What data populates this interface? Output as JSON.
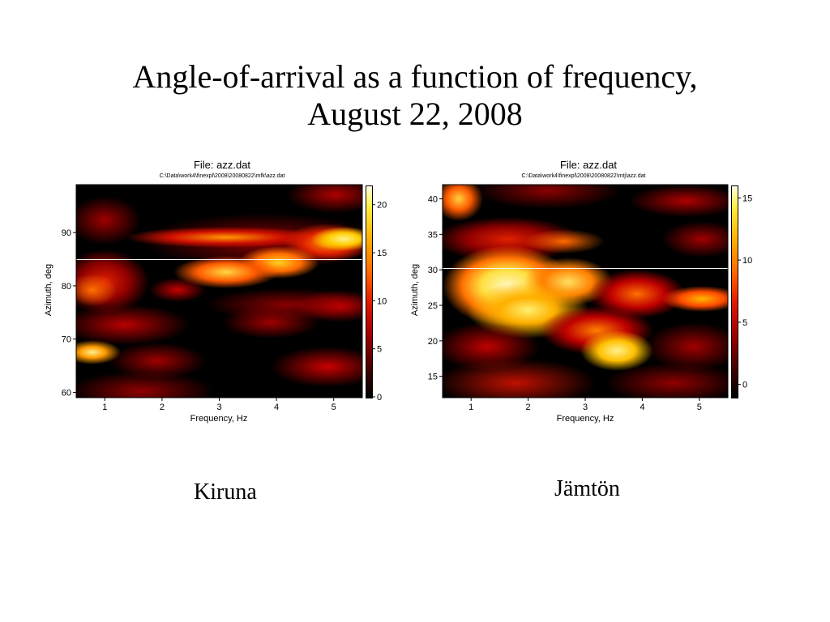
{
  "title_line1": "Angle-of-arrival as a function of frequency,",
  "title_line2": "August 22, 2008",
  "chart_data": [
    {
      "type": "heatmap",
      "name": "Kiruna",
      "title": "File: azz.dat",
      "subtitle": "C:\\Data\\work4\\finexpl\\2008\\20080822\\mfk\\azz.dat",
      "xlabel": "Frequency, Hz",
      "ylabel": "Azimuth, deg",
      "xlim": [
        0.5,
        5.5
      ],
      "ylim": [
        59,
        99
      ],
      "xticks": [
        1,
        2,
        3,
        4,
        5
      ],
      "yticks": [
        60,
        70,
        80,
        90
      ],
      "colorbar_ticks": [
        0,
        5,
        10,
        15,
        20
      ],
      "colorbar_range": [
        0,
        22
      ],
      "colormap": "hot",
      "marker_line_y": 85,
      "caption": "Kiruna"
    },
    {
      "type": "heatmap",
      "name": "Jämtön",
      "title": "File: azz.dat",
      "subtitle": "C:\\Data\\work4\\finexpl\\2008\\20080822\\mtj\\azz.dat",
      "xlabel": "Frequency, Hz",
      "ylabel": "Azimuth, deg",
      "xlim": [
        0.5,
        5.5
      ],
      "ylim": [
        12,
        42
      ],
      "xticks": [
        1,
        2,
        3,
        4,
        5
      ],
      "yticks": [
        15,
        20,
        25,
        30,
        35,
        40
      ],
      "colorbar_ticks": [
        0,
        5,
        10,
        15
      ],
      "colorbar_range": [
        -1,
        16
      ],
      "colormap": "hot",
      "marker_line_y": 30.3,
      "caption": "Jämtön"
    }
  ],
  "colors": {
    "low": "#000000",
    "mid": "#e21a00",
    "high": "#ffee40",
    "peak": "#ffffe6",
    "marker_line": "#f4f4f4"
  }
}
